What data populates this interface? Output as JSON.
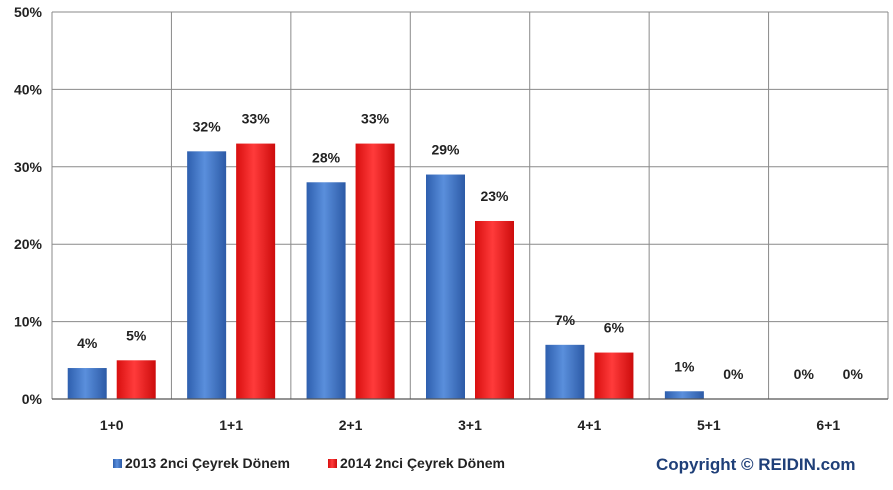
{
  "chart_data": {
    "type": "bar",
    "title": "",
    "xlabel": "",
    "ylabel": "",
    "categories": [
      "1+0",
      "1+1",
      "2+1",
      "3+1",
      "4+1",
      "5+1",
      "6+1"
    ],
    "series": [
      {
        "name": "2013 2nci Çeyrek Dönem",
        "color": "#3c72c4",
        "values": [
          4,
          32,
          28,
          29,
          7,
          1,
          0
        ],
        "labels": [
          "4%",
          "32%",
          "28%",
          "29%",
          "7%",
          "1%",
          "0%"
        ]
      },
      {
        "name": "2014 2nci Çeyrek Dönem",
        "color": "#ee1c1c",
        "values": [
          5,
          33,
          33,
          23,
          6,
          0,
          0
        ],
        "labels": [
          "5%",
          "33%",
          "33%",
          "23%",
          "6%",
          "0%",
          "0%"
        ]
      }
    ],
    "ylim": [
      0,
      50
    ],
    "yticks": [
      0,
      10,
      20,
      30,
      40,
      50
    ],
    "ytick_labels": [
      "0%",
      "10%",
      "20%",
      "30%",
      "40%",
      "50%"
    ],
    "grid": true,
    "legend": "bottom-left"
  },
  "copyright": "Copyright © REIDIN.com"
}
